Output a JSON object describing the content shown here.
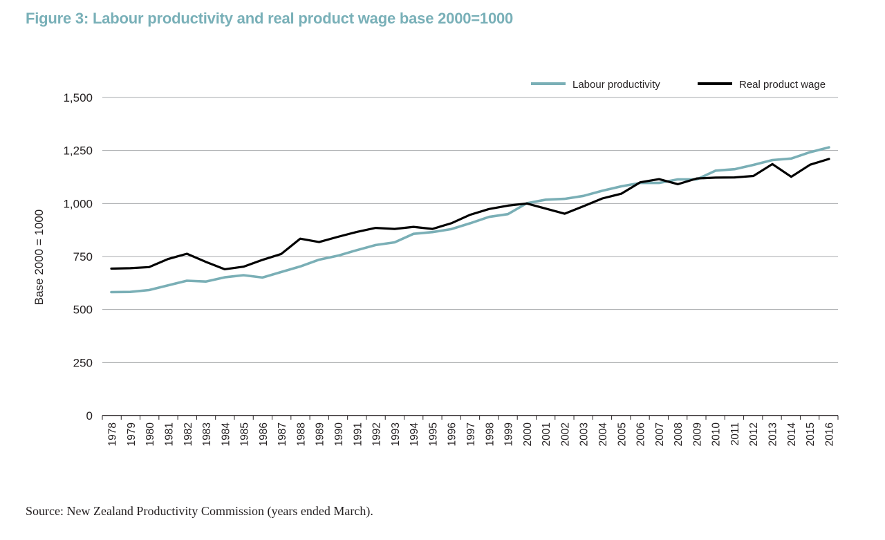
{
  "title": "Figure 3: Labour productivity and real product wage base 2000=1000",
  "source": "Source: New Zealand Productivity Commission (years ended March).",
  "chart_data": {
    "type": "line",
    "title": "Figure 3: Labour productivity and real product wage base 2000=1000",
    "xlabel": "",
    "ylabel": "Base 2000 = 1000",
    "ylim": [
      0,
      1500
    ],
    "yticks": [
      "0",
      "250",
      "500",
      "750",
      "1,000",
      "1,250",
      "1,500"
    ],
    "ytick_values": [
      0,
      250,
      500,
      750,
      1000,
      1250,
      1500
    ],
    "grid": true,
    "legend_position": "top-right",
    "x": [
      "1978",
      "1979",
      "1980",
      "1981",
      "1982",
      "1983",
      "1984",
      "1985",
      "1986",
      "1987",
      "1988",
      "1989",
      "1990",
      "1991",
      "1992",
      "1993",
      "1994",
      "1995",
      "1996",
      "1997",
      "1998",
      "1999",
      "2000",
      "2001",
      "2002",
      "2003",
      "2004",
      "2005",
      "2006",
      "2007",
      "2008",
      "2009",
      "2010",
      "2011",
      "2012",
      "2013",
      "2014",
      "2015",
      "2016"
    ],
    "series": [
      {
        "name": "Labour productivity",
        "color": "#7aafb6",
        "values": [
          582,
          583,
          592,
          614,
          636,
          632,
          652,
          662,
          651,
          677,
          703,
          735,
          754,
          780,
          804,
          817,
          857,
          865,
          879,
          907,
          937,
          950,
          1001,
          1018,
          1022,
          1036,
          1060,
          1081,
          1097,
          1097,
          1114,
          1114,
          1155,
          1162,
          1182,
          1205,
          1212,
          1242,
          1265
        ]
      },
      {
        "name": "Real product wage",
        "color": "#000000",
        "values": [
          693,
          695,
          700,
          738,
          763,
          725,
          690,
          702,
          734,
          762,
          834,
          818,
          843,
          866,
          885,
          880,
          890,
          880,
          907,
          947,
          974,
          990,
          1000,
          976,
          952,
          987,
          1024,
          1046,
          1100,
          1115,
          1091,
          1118,
          1122,
          1123,
          1130,
          1186,
          1126,
          1183,
          1210
        ]
      }
    ]
  }
}
